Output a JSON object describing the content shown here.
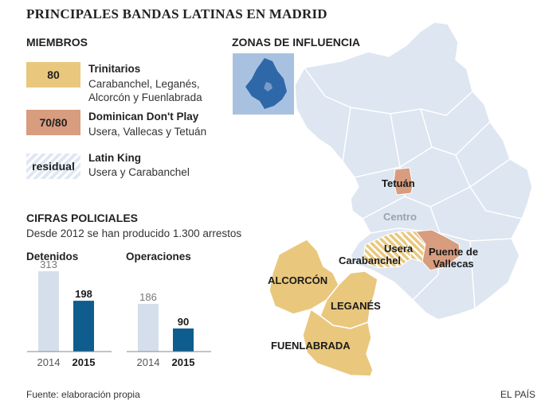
{
  "header": {
    "title": "PRINCIPALES BANDAS LATINAS EN MADRID"
  },
  "members": {
    "heading": "MIEMBROS",
    "items": [
      {
        "count": "80",
        "name": "Trinitarios",
        "areas": [
          "Carabanchel, Leganés,",
          "Alcorcón y Fuenlabrada"
        ],
        "color": "#e9c77d"
      },
      {
        "count": "70/80",
        "name": "Dominican Don't Play",
        "areas": [
          "Usera, Vallecas y Tetuán"
        ],
        "color": "#d89c7e"
      },
      {
        "count": "residual",
        "name": "Latin King",
        "areas": [
          "Usera y Carabanchel"
        ],
        "color": "hatched"
      }
    ]
  },
  "police": {
    "heading": "CIFRAS POLICIALES",
    "subtitle": "Desde 2012 se han producido 1.300 arrestos"
  },
  "chart_data": [
    {
      "type": "bar",
      "title": "Detenidos",
      "categories": [
        "2014",
        "2015"
      ],
      "values": [
        313,
        198
      ],
      "colors": [
        "#d5dfec",
        "#0e5d8e"
      ]
    },
    {
      "type": "bar",
      "title": "Operaciones",
      "categories": [
        "2014",
        "2015"
      ],
      "values": [
        186,
        90
      ],
      "colors": [
        "#d5dfec",
        "#0e5d8e"
      ]
    }
  ],
  "map": {
    "heading": "ZONAS DE INFLUENCIA",
    "labels": {
      "tetuan": "Tetuán",
      "centro": "Centro",
      "usera": "Usera",
      "carabanchel": "Carabanchel",
      "puente_l1": "Puente de",
      "puente_l2": "Vallecas",
      "alcorcon": "ALCORCÓN",
      "leganes": "LEGANÉS",
      "fuenlabrada": "FUENLABRADA"
    },
    "colors": {
      "base": "#dde6f1",
      "trinitarios": "#e9c77d",
      "ddp": "#d89c7e",
      "inset_bg": "#a9c1e0",
      "inset_region": "#2e68a8"
    }
  },
  "footer": {
    "source": "Fuente: elaboración propia",
    "credit": "EL PAÍS"
  }
}
